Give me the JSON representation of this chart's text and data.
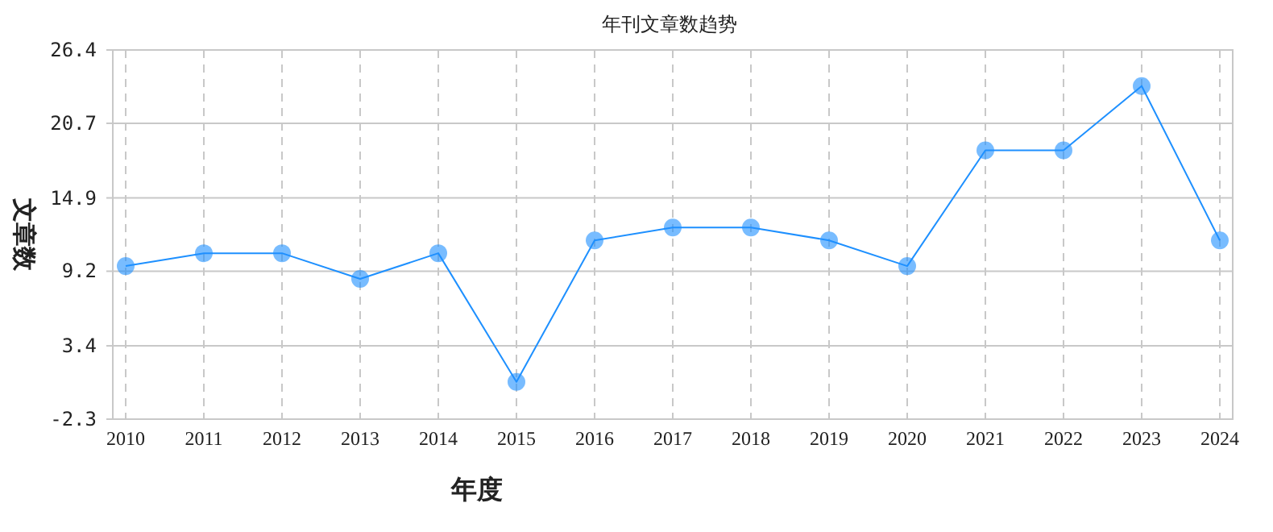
{
  "chart_data": {
    "type": "line",
    "title": "年刊文章数趋势",
    "xlabel": "年度",
    "ylabel": "文章数",
    "categories": [
      "2010",
      "2011",
      "2012",
      "2013",
      "2014",
      "2015",
      "2016",
      "2017",
      "2018",
      "2019",
      "2020",
      "2021",
      "2022",
      "2023",
      "2024"
    ],
    "series": [
      {
        "color": "#1e90ff",
        "values": [
          9.6,
          10.6,
          10.6,
          8.6,
          10.6,
          0.6,
          11.6,
          12.6,
          12.6,
          11.6,
          9.6,
          18.6,
          18.6,
          23.6,
          11.6
        ]
      }
    ],
    "ylim": [
      -2.3,
      26.4
    ],
    "yticks": [
      -2.3,
      3.4,
      9.2,
      14.9,
      20.7,
      26.4
    ],
    "grid": true,
    "marker": "circle",
    "line_style": "solid"
  }
}
